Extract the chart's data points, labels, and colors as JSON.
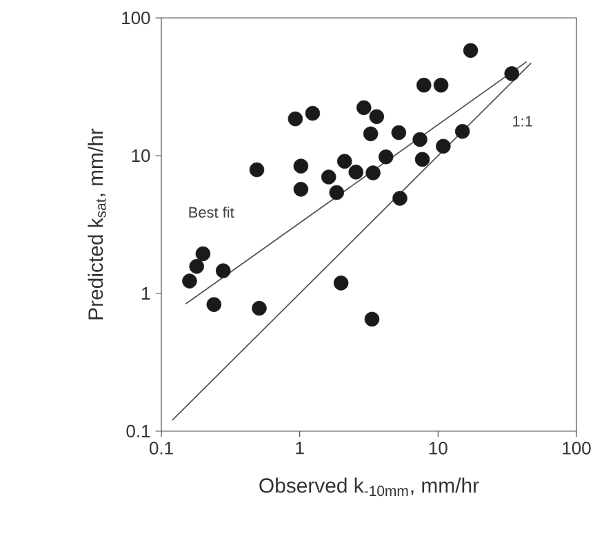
{
  "chart_data": {
    "type": "scatter",
    "xlabel": "Observed k$_{-10mm}$, mm/hr",
    "ylabel": "Predicted k$_{sat}$, mm/hr",
    "log": "xy",
    "marker": "circle",
    "xlim": [
      0.1,
      100
    ],
    "ylim": [
      0.1,
      100
    ],
    "xticks": [
      0.1,
      1,
      10,
      100
    ],
    "yticks": [
      0.1,
      1,
      10,
      100
    ],
    "series": [
      {
        "color": "#1a1a1a",
        "x": [
          0.16,
          0.18,
          0.2,
          0.28,
          0.24,
          0.51,
          0.49,
          0.93,
          1.24,
          1.02,
          1.02,
          1.62,
          1.85,
          2.11,
          2.55,
          1.99,
          2.91,
          3.6,
          3.26,
          3.39,
          3.33,
          4.2,
          5.2,
          5.3,
          7.4,
          7.7,
          7.9,
          10.5,
          10.9,
          15.0,
          17.2,
          34.1
        ],
        "values": [
          1.23,
          1.57,
          1.94,
          1.46,
          0.83,
          0.78,
          7.9,
          18.5,
          20.3,
          8.4,
          5.7,
          7.0,
          5.4,
          9.1,
          7.6,
          1.19,
          22.3,
          19.2,
          14.4,
          7.5,
          0.65,
          9.8,
          14.7,
          4.9,
          13.1,
          9.4,
          32.5,
          32.5,
          11.7,
          15.0,
          58,
          39.4
        ]
      },
      {
        "type": "line",
        "marker": "none",
        "color": "#555555",
        "x": [
          0.15,
          43.6
        ],
        "values": [
          0.84,
          48
        ]
      },
      {
        "type": "line",
        "marker": "none",
        "color": "#555555",
        "x": [
          0.12,
          47
        ],
        "values": [
          0.12,
          47
        ]
      }
    ],
    "annotations": [
      "Best fit",
      "1:1"
    ]
  }
}
